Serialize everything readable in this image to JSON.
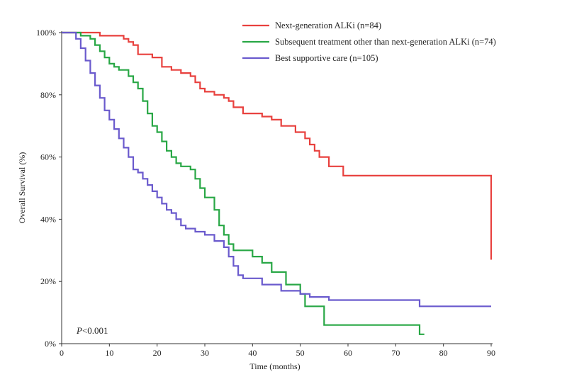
{
  "chart_data": {
    "type": "line",
    "title": "",
    "xlabel": "Time (months)",
    "ylabel": "Overall Survival (%)",
    "xlim": [
      0,
      90
    ],
    "ylim": [
      0,
      100
    ],
    "xticks": [
      "0",
      "10",
      "20",
      "30",
      "40",
      "50",
      "60",
      "70",
      "80",
      "90"
    ],
    "yticks": [
      "0%",
      "20%",
      "40%",
      "60%",
      "80%",
      "100%"
    ],
    "legend_position": "top-right",
    "annotation": {
      "italic": "P",
      "text": "<0.001"
    },
    "series": [
      {
        "name": "Next-generation  ALKi (n=84)",
        "color": "#e8413e",
        "step": true,
        "x": [
          0,
          7,
          8,
          12,
          13,
          14,
          15,
          16,
          19,
          21,
          23,
          25,
          27,
          28,
          29,
          30,
          32,
          34,
          35,
          36,
          38,
          42,
          44,
          46,
          49,
          51,
          52,
          53,
          54,
          56,
          59,
          77,
          90,
          90
        ],
        "y": [
          100,
          100,
          99,
          99,
          98,
          97,
          96,
          93,
          92,
          89,
          88,
          87,
          86,
          84,
          82,
          81,
          80,
          79,
          78,
          76,
          74,
          73,
          72,
          70,
          68,
          66,
          64,
          62,
          60,
          57,
          54,
          54,
          54,
          27
        ]
      },
      {
        "name": "Subsequent  treatment  other  than  next-generation  ALKi  (n=74)",
        "color": "#28a745",
        "step": true,
        "x": [
          0,
          4,
          6,
          7,
          8,
          9,
          10,
          11,
          12,
          14,
          15,
          16,
          17,
          18,
          19,
          20,
          21,
          22,
          23,
          24,
          25,
          27,
          28,
          29,
          30,
          31,
          32,
          33,
          34,
          35,
          36,
          38,
          40,
          42,
          44,
          47,
          50,
          51,
          55,
          74,
          75,
          76
        ],
        "y": [
          100,
          99,
          98,
          96,
          94,
          92,
          90,
          89,
          88,
          86,
          84,
          82,
          78,
          74,
          70,
          68,
          65,
          62,
          60,
          58,
          57,
          56,
          53,
          50,
          47,
          47,
          43,
          38,
          35,
          32,
          30,
          30,
          28,
          26,
          23,
          19,
          16,
          12,
          6,
          6,
          3,
          3
        ]
      },
      {
        "name": "Best  supportive  care  (n=105)",
        "color": "#6a5acd",
        "step": true,
        "x": [
          0,
          3,
          4,
          5,
          6,
          7,
          8,
          9,
          10,
          11,
          12,
          13,
          14,
          15,
          16,
          17,
          18,
          19,
          20,
          21,
          22,
          23,
          24,
          25,
          26,
          28,
          30,
          32,
          34,
          35,
          36,
          37,
          38,
          42,
          46,
          50,
          52,
          56,
          60,
          75,
          90
        ],
        "y": [
          100,
          98,
          95,
          91,
          87,
          83,
          79,
          75,
          72,
          69,
          66,
          63,
          60,
          56,
          55,
          53,
          51,
          49,
          47,
          45,
          43,
          42,
          40,
          38,
          37,
          36,
          35,
          33,
          31,
          28,
          25,
          22,
          21,
          19,
          17,
          16,
          15,
          14,
          14,
          12,
          12
        ]
      }
    ]
  }
}
